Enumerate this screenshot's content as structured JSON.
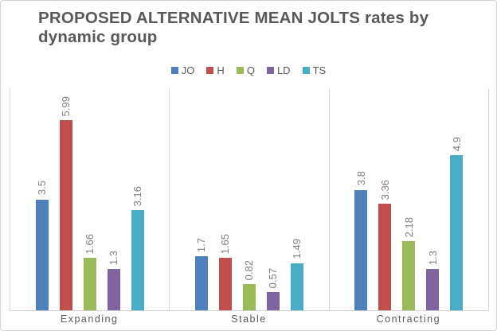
{
  "title": "PROPOSED ALTERNATIVE MEAN JOLTS rates by dynamic group",
  "title_color": "#595959",
  "chart_data": {
    "type": "bar",
    "title": "PROPOSED ALTERNATIVE MEAN JOLTS rates by dynamic group",
    "categories": [
      "Expanding",
      "Stable",
      "Contracting"
    ],
    "series": [
      {
        "name": "JO",
        "color": "#4F81BD",
        "values": [
          3.5,
          1.7,
          3.8
        ]
      },
      {
        "name": "H",
        "color": "#C0504D",
        "values": [
          5.99,
          1.65,
          3.36
        ]
      },
      {
        "name": "Q",
        "color": "#9BBB59",
        "values": [
          1.66,
          0.82,
          2.18
        ]
      },
      {
        "name": "LD",
        "color": "#8064A2",
        "values": [
          1.3,
          0.57,
          1.3
        ]
      },
      {
        "name": "TS",
        "color": "#4BACC6",
        "values": [
          3.16,
          1.49,
          4.9
        ]
      }
    ],
    "data_labels": [
      [
        "3.5",
        "1.7",
        "3.8"
      ],
      [
        "5.99",
        "1.65",
        "3.36"
      ],
      [
        "1.66",
        "0.82",
        "2.18"
      ],
      [
        "1.3",
        "0.57",
        "1.3"
      ],
      [
        "3.16",
        "1.49",
        "4.9"
      ]
    ],
    "xlabel": "",
    "ylabel": "",
    "ylim": [
      0,
      7
    ],
    "legend_position": "top-center",
    "legend_entries": [
      "JO",
      "H",
      "Q",
      "LD",
      "TS"
    ],
    "grid": "vertical-category-separators",
    "gridline_color": "#d9d9d9",
    "label_color": "#7f7f7f",
    "axis_text_color": "#595959"
  }
}
